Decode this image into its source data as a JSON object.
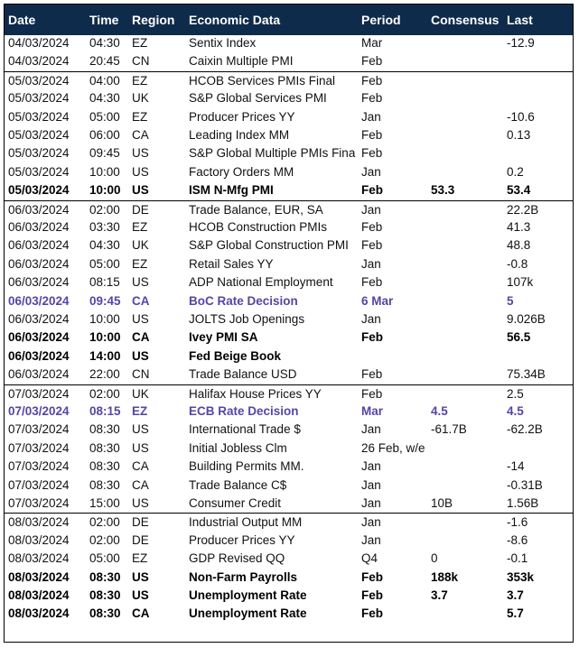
{
  "header": [
    "Date",
    "Time",
    "Region",
    "Economic Data",
    "Period",
    "Consensus",
    "Last"
  ],
  "groups": [
    {
      "rows": [
        {
          "cells": [
            "04/03/2024",
            "04:30",
            "EZ",
            "Sentix Index",
            "Mar",
            null,
            "-12.9"
          ]
        },
        {
          "cells": [
            "04/03/2024",
            "20:45",
            "CN",
            "Caixin Multiple PMI",
            "Feb",
            null,
            null
          ]
        }
      ]
    },
    {
      "rows": [
        {
          "cells": [
            "05/03/2024",
            "04:00",
            "EZ",
            "HCOB Services PMIs Final",
            "Feb",
            null,
            null
          ]
        },
        {
          "cells": [
            "05/03/2024",
            "04:30",
            "UK",
            "S&P Global Services PMI",
            "Feb",
            null,
            null
          ]
        },
        {
          "cells": [
            "05/03/2024",
            "05:00",
            "EZ",
            "Producer Prices YY",
            "Jan",
            null,
            "-10.6"
          ]
        },
        {
          "cells": [
            "05/03/2024",
            "06:00",
            "CA",
            "Leading Index MM",
            "Feb",
            null,
            "0.13"
          ]
        },
        {
          "cells": [
            "05/03/2024",
            "09:45",
            "US",
            "S&P Global Multiple PMIs Fina",
            "Feb",
            null,
            null
          ]
        },
        {
          "cells": [
            "05/03/2024",
            "10:00",
            "US",
            "Factory Orders MM",
            "Jan",
            null,
            "0.2"
          ]
        },
        {
          "cells": [
            "05/03/2024",
            "10:00",
            "US",
            "ISM N-Mfg PMI",
            "Feb",
            "53.3",
            "53.4"
          ],
          "style": "bold"
        }
      ]
    },
    {
      "rows": [
        {
          "cells": [
            "06/03/2024",
            "02:00",
            "DE",
            "Trade Balance, EUR, SA",
            "Jan",
            null,
            "22.2B"
          ]
        },
        {
          "cells": [
            "06/03/2024",
            "03:30",
            "EZ",
            "HCOB Construction PMIs",
            "Feb",
            null,
            "41.3"
          ]
        },
        {
          "cells": [
            "06/03/2024",
            "04:30",
            "UK",
            "S&P Global Construction PMI",
            "Feb",
            null,
            "48.8"
          ]
        },
        {
          "cells": [
            "06/03/2024",
            "05:00",
            "EZ",
            "Retail Sales YY",
            "Jan",
            null,
            "-0.8"
          ]
        },
        {
          "cells": [
            "06/03/2024",
            "08:15",
            "US",
            "ADP National Employment",
            "Feb",
            null,
            "107k"
          ]
        },
        {
          "cells": [
            "06/03/2024",
            "09:45",
            "CA",
            "BoC Rate Decision",
            "6 Mar",
            null,
            "5"
          ],
          "style": "highlight"
        },
        {
          "cells": [
            "06/03/2024",
            "10:00",
            "US",
            "JOLTS Job Openings",
            "Jan",
            null,
            "9.026B"
          ]
        },
        {
          "cells": [
            "06/03/2024",
            "10:00",
            "CA",
            "Ivey PMI SA",
            "Feb",
            null,
            "56.5"
          ],
          "style": "bold"
        },
        {
          "cells": [
            "06/03/2024",
            "14:00",
            "US",
            "Fed Beige Book",
            null,
            null,
            null
          ],
          "style": "bold"
        },
        {
          "cells": [
            "06/03/2024",
            "22:00",
            "CN",
            "Trade Balance USD",
            "Feb",
            null,
            "75.34B"
          ]
        }
      ]
    },
    {
      "rows": [
        {
          "cells": [
            "07/03/2024",
            "02:00",
            "UK",
            "Halifax House Prices YY",
            "Feb",
            null,
            "2.5"
          ]
        },
        {
          "cells": [
            "07/03/2024",
            "08:15",
            "EZ",
            "ECB Rate Decision",
            "Mar",
            "4.5",
            "4.5"
          ],
          "style": "highlight"
        },
        {
          "cells": [
            "07/03/2024",
            "08:30",
            "US",
            "International Trade $",
            "Jan",
            "-61.7B",
            "-62.2B"
          ]
        },
        {
          "cells": [
            "07/03/2024",
            "08:30",
            "US",
            "Initial Jobless Clm",
            "26 Feb, w/e",
            null,
            null
          ]
        },
        {
          "cells": [
            "07/03/2024",
            "08:30",
            "CA",
            "Building Permits MM.",
            "Jan",
            null,
            "-14"
          ]
        },
        {
          "cells": [
            "07/03/2024",
            "08:30",
            "CA",
            "Trade Balance C$",
            "Jan",
            null,
            "-0.31B"
          ]
        },
        {
          "cells": [
            "07/03/2024",
            "15:00",
            "US",
            "Consumer Credit",
            "Jan",
            "10B",
            "1.56B"
          ]
        }
      ]
    },
    {
      "rows": [
        {
          "cells": [
            "08/03/2024",
            "02:00",
            "DE",
            "Industrial Output MM",
            "Jan",
            null,
            "-1.6"
          ]
        },
        {
          "cells": [
            "08/03/2024",
            "02:00",
            "DE",
            "Producer Prices YY",
            "Jan",
            null,
            "-8.6"
          ]
        },
        {
          "cells": [
            "08/03/2024",
            "05:00",
            "EZ",
            "GDP Revised QQ",
            "Q4",
            "0",
            "-0.1"
          ]
        },
        {
          "cells": [
            "08/03/2024",
            "08:30",
            "US",
            "Non-Farm Payrolls",
            "Feb",
            "188k",
            "353k"
          ],
          "style": "bold"
        },
        {
          "cells": [
            "08/03/2024",
            "08:30",
            "US",
            "Unemployment Rate",
            "Feb",
            "3.7",
            "3.7"
          ],
          "style": "bold"
        },
        {
          "cells": [
            "08/03/2024",
            "08:30",
            "CA",
            "Unemployment Rate",
            "Feb",
            null,
            "5.7"
          ],
          "style": "bold"
        }
      ]
    }
  ]
}
